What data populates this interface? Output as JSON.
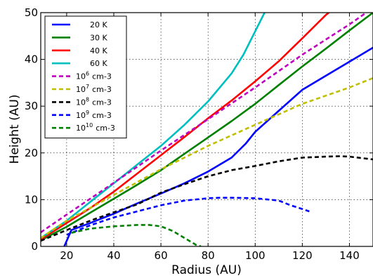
{
  "chart_data": {
    "type": "line",
    "title": "",
    "xlabel": "Radius (AU)",
    "ylabel": "Height (AU)",
    "xlim": [
      9,
      150
    ],
    "ylim": [
      0,
      50
    ],
    "xticks": [
      20,
      40,
      60,
      80,
      100,
      120,
      140
    ],
    "yticks": [
      0,
      10,
      20,
      30,
      40,
      50
    ],
    "grid": true,
    "legend_position": "top-left",
    "series": [
      {
        "name": "20 K",
        "color": "#0000ff",
        "style": "solid",
        "x": [
          19,
          22,
          30,
          40,
          50,
          60,
          70,
          80,
          90,
          96,
          100,
          110,
          120,
          130,
          140,
          150
        ],
        "y": [
          0,
          3.5,
          5.0,
          7.0,
          9.2,
          11.3,
          13.5,
          16.0,
          19.0,
          22.0,
          24.5,
          29.0,
          33.5,
          36.5,
          39.5,
          42.5
        ]
      },
      {
        "name": "30 K",
        "color": "#008000",
        "style": "solid",
        "x": [
          9,
          20,
          30,
          40,
          50,
          60,
          70,
          80,
          90,
          100,
          110,
          120,
          130,
          140,
          150
        ],
        "y": [
          1.3,
          4.2,
          7.2,
          10.2,
          13.2,
          16.3,
          19.8,
          23.3,
          26.8,
          30.5,
          34.5,
          38.5,
          42.3,
          46.2,
          50.0
        ]
      },
      {
        "name": "40 K",
        "color": "#ff0000",
        "style": "solid",
        "x": [
          9,
          20,
          30,
          40,
          50,
          60,
          70,
          80,
          90,
          100,
          110,
          120,
          130,
          135
        ],
        "y": [
          1.5,
          5.0,
          8.2,
          11.7,
          15.6,
          19.5,
          23.4,
          27.4,
          31.2,
          35.3,
          39.6,
          44.5,
          49.5,
          51.5
        ]
      },
      {
        "name": "60 K",
        "color": "#00bfbf",
        "style": "solid",
        "x": [
          9,
          20,
          30,
          40,
          50,
          60,
          70,
          80,
          90,
          95,
          100,
          105,
          110
        ],
        "y": [
          1.8,
          5.5,
          9.5,
          13.5,
          17.5,
          21.5,
          26.0,
          31.0,
          37.0,
          41.0,
          46.0,
          51.0,
          56.0
        ]
      },
      {
        "name": "10^6 cm-3",
        "label_base": "10",
        "label_exp": "6",
        "label_unit": "cm-3",
        "color": "#bf00bf",
        "style": "dashed",
        "x": [
          9,
          20,
          40,
          60,
          80,
          100,
          120,
          140,
          150
        ],
        "y": [
          3.0,
          6.8,
          13.6,
          20.5,
          27.2,
          34.0,
          41.0,
          47.5,
          51.0
        ]
      },
      {
        "name": "10^7 cm-3",
        "label_base": "10",
        "label_exp": "7",
        "label_unit": "cm-3",
        "color": "#bfbf00",
        "style": "dashed",
        "x": [
          9,
          20,
          40,
          60,
          80,
          100,
          120,
          140,
          150
        ],
        "y": [
          1.8,
          5.5,
          11.0,
          16.5,
          21.5,
          26.0,
          30.5,
          34.0,
          36.0
        ]
      },
      {
        "name": "10^8 cm-3",
        "label_base": "10",
        "label_exp": "8",
        "label_unit": "cm-3",
        "color": "#000000",
        "style": "dashed",
        "x": [
          9,
          20,
          30,
          40,
          50,
          60,
          70,
          80,
          90,
          100,
          110,
          120,
          130,
          136,
          140,
          150
        ],
        "y": [
          1.2,
          3.5,
          5.5,
          7.3,
          9.0,
          11.5,
          13.3,
          15.0,
          16.3,
          17.2,
          18.2,
          19.0,
          19.2,
          19.3,
          19.2,
          18.6
        ]
      },
      {
        "name": "10^9 cm-3",
        "label_base": "10",
        "label_exp": "9",
        "label_unit": "cm-3",
        "color": "#0000ff",
        "style": "dashed",
        "x": [
          20,
          30,
          40,
          50,
          60,
          70,
          80,
          85,
          90,
          100,
          110,
          115,
          120,
          123
        ],
        "y": [
          2.5,
          4.5,
          6.2,
          7.5,
          8.8,
          9.8,
          10.3,
          10.4,
          10.4,
          10.3,
          9.8,
          8.8,
          8.0,
          7.5
        ]
      },
      {
        "name": "10^10 cm-3",
        "label_base": "10",
        "label_exp": "10",
        "label_unit": "cm-3",
        "color": "#008000",
        "style": "dashed",
        "x": [
          22,
          30,
          40,
          50,
          55,
          60,
          65,
          70,
          75,
          77
        ],
        "y": [
          2.9,
          3.8,
          4.3,
          4.6,
          4.6,
          4.3,
          3.3,
          1.8,
          0.3,
          0
        ]
      }
    ]
  }
}
